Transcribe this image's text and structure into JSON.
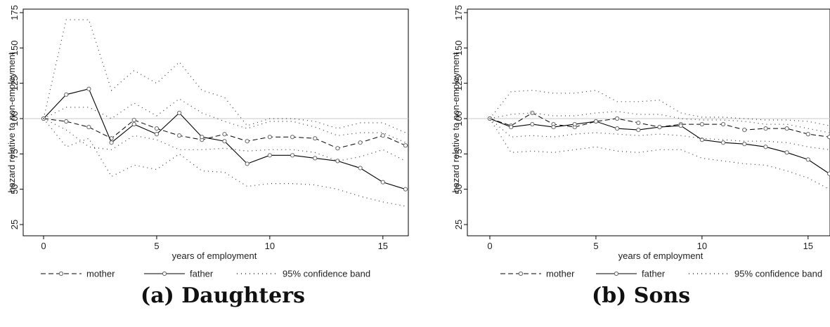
{
  "chart_data": [
    {
      "type": "line",
      "caption": "(a) Daughters",
      "xlabel": "years of employment",
      "ylabel": "hazard relative to non-employment",
      "xlim": [
        0,
        16
      ],
      "ylim": [
        25,
        175
      ],
      "xticks": [
        0,
        5,
        10,
        15
      ],
      "yticks": [
        25,
        50,
        75,
        100,
        125,
        150,
        175
      ],
      "reference_line": 100,
      "legend_position": "bottom",
      "x": [
        0,
        1,
        2,
        3,
        4,
        5,
        6,
        7,
        8,
        9,
        10,
        11,
        12,
        13,
        14,
        15,
        16
      ],
      "series": [
        {
          "name": "mother",
          "style": "dashed",
          "markers": true,
          "values": [
            100,
            98,
            94,
            86,
            99,
            93,
            88,
            85,
            89,
            84,
            87,
            87,
            86,
            79,
            83,
            88,
            81
          ]
        },
        {
          "name": "father",
          "style": "solid",
          "markers": true,
          "values": [
            100,
            117,
            121,
            83,
            96,
            89,
            104,
            87,
            84,
            68,
            74,
            74,
            72,
            70,
            65,
            55,
            50
          ]
        },
        {
          "name": "95% confidence band",
          "style": "dotted",
          "markers": false,
          "values": [
            100,
            170,
            170,
            120,
            134,
            125,
            140,
            120,
            115,
            95,
            100,
            100,
            98,
            93,
            97,
            97,
            90
          ]
        },
        {
          "name": "",
          "style": "dotted",
          "markers": false,
          "values": [
            100,
            108,
            108,
            100,
            111,
            102,
            114,
            104,
            98,
            93,
            98,
            98,
            94,
            88,
            90,
            90,
            83
          ]
        },
        {
          "name": "",
          "style": "dotted",
          "markers": false,
          "values": [
            100,
            80,
            86,
            59,
            67,
            64,
            75,
            63,
            62,
            52,
            54,
            54,
            53,
            50,
            45,
            41,
            38
          ]
        },
        {
          "name": "",
          "style": "dotted",
          "markers": false,
          "values": [
            100,
            92,
            80,
            78,
            88,
            85,
            78,
            78,
            79,
            77,
            78,
            78,
            76,
            70,
            73,
            78,
            70
          ]
        }
      ]
    },
    {
      "type": "line",
      "caption": "(b) Sons",
      "xlabel": "years of employment",
      "ylabel": "hazard relative to non-employment",
      "xlim": [
        0,
        16
      ],
      "ylim": [
        25,
        175
      ],
      "xticks": [
        0,
        5,
        10,
        15
      ],
      "yticks": [
        25,
        50,
        75,
        100,
        125,
        150,
        175
      ],
      "reference_line": 100,
      "legend_position": "bottom",
      "x": [
        0,
        1,
        2,
        3,
        4,
        5,
        6,
        7,
        8,
        9,
        10,
        11,
        12,
        13,
        14,
        15,
        16
      ],
      "series": [
        {
          "name": "mother",
          "style": "dashed",
          "markers": true,
          "values": [
            100,
            95,
            104,
            96,
            94,
            98,
            100,
            97,
            94,
            96,
            96,
            96,
            92,
            93,
            93,
            89,
            87
          ]
        },
        {
          "name": "father",
          "style": "solid",
          "markers": true,
          "values": [
            100,
            94,
            96,
            94,
            96,
            98,
            93,
            92,
            94,
            95,
            85,
            83,
            82,
            80,
            76,
            71,
            61
          ]
        },
        {
          "name": "95% confidence band",
          "style": "dotted",
          "markers": false,
          "values": [
            100,
            119,
            120,
            118,
            118,
            120,
            112,
            112,
            113,
            104,
            101,
            101,
            100,
            99,
            99,
            98,
            95
          ]
        },
        {
          "name": "",
          "style": "dotted",
          "markers": false,
          "values": [
            100,
            103,
            104,
            102,
            102,
            104,
            105,
            103,
            103,
            100,
            99,
            99,
            98,
            96,
            96,
            93,
            90
          ]
        },
        {
          "name": "",
          "style": "dotted",
          "markers": false,
          "values": [
            100,
            87,
            88,
            87,
            89,
            90,
            89,
            88,
            89,
            88,
            86,
            85,
            84,
            84,
            83,
            80,
            78
          ]
        },
        {
          "name": "",
          "style": "dotted",
          "markers": false,
          "values": [
            100,
            76,
            77,
            76,
            78,
            80,
            77,
            76,
            78,
            78,
            72,
            70,
            68,
            67,
            63,
            58,
            50
          ]
        }
      ]
    }
  ]
}
